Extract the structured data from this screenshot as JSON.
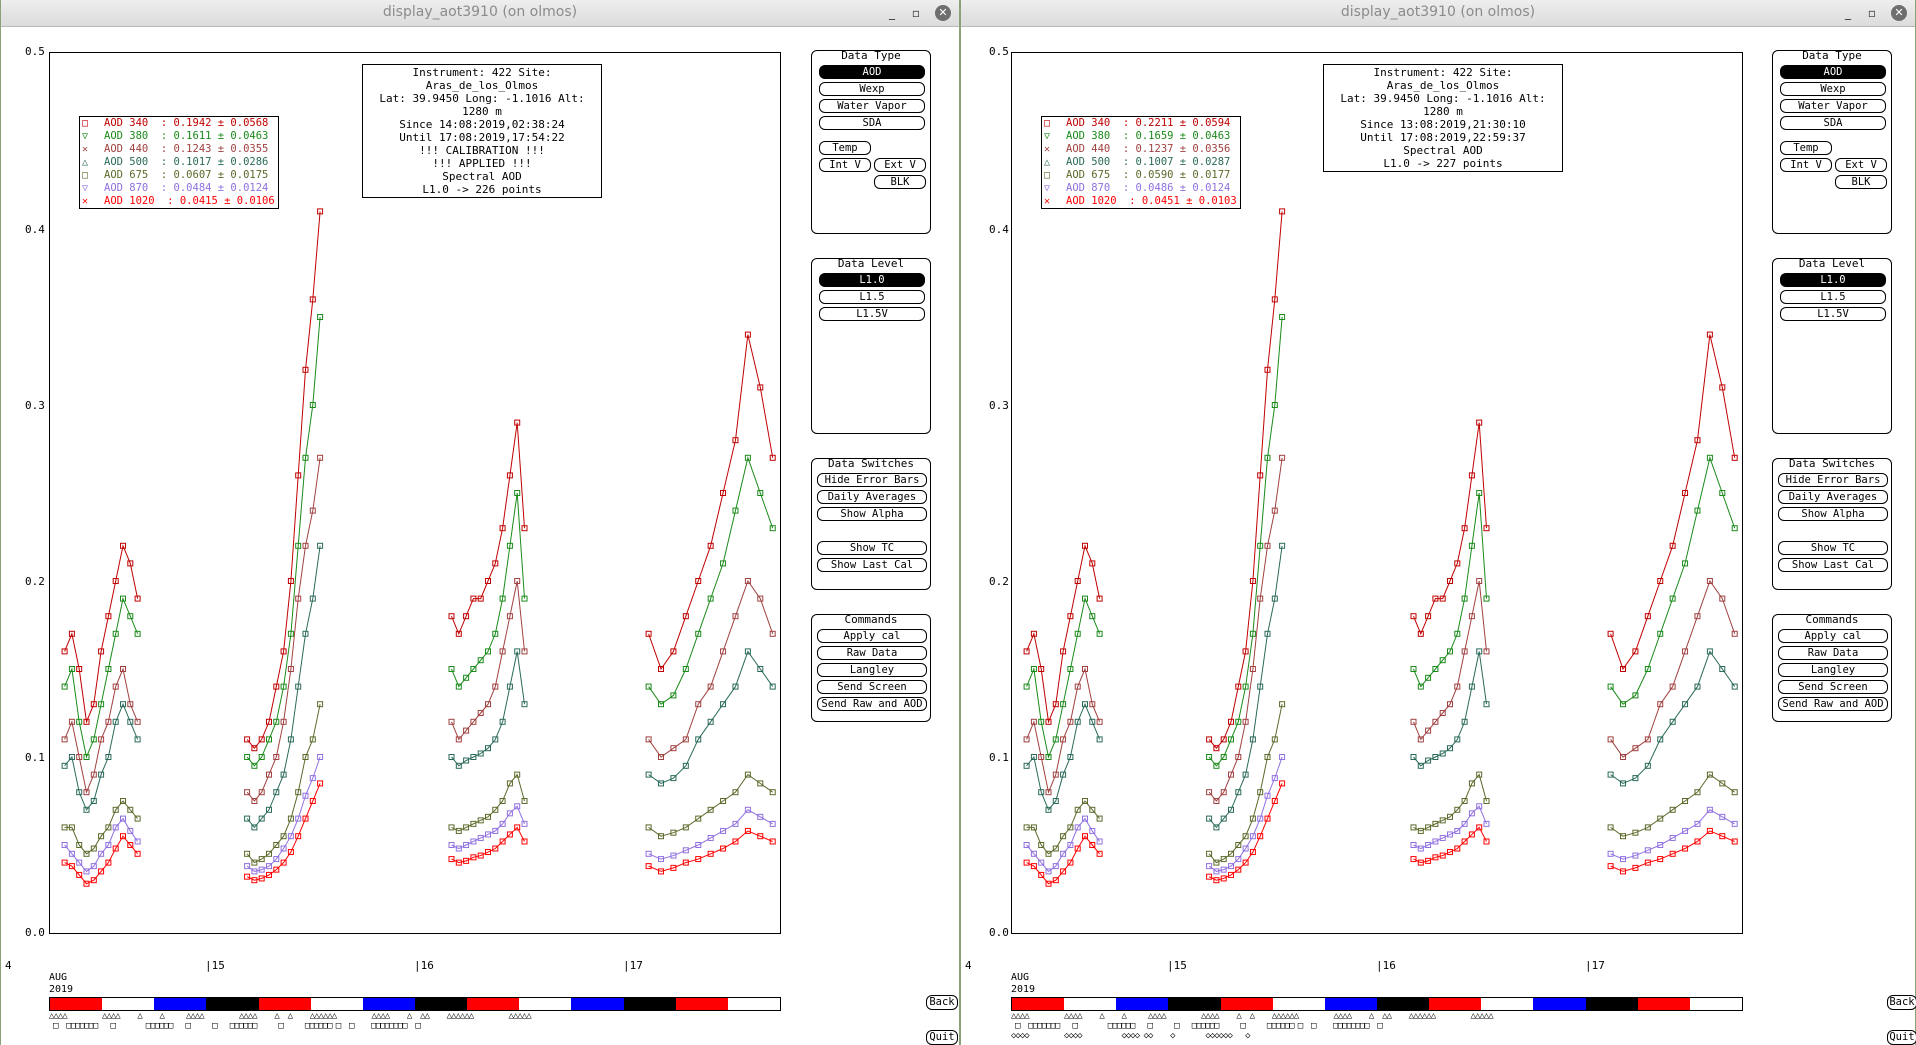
{
  "colors": {
    "aod340": "#c00000",
    "aod380": "#1a8a1a",
    "aod440": "#a04040",
    "aod500": "#2a6a5a",
    "aod675": "#5a6a2a",
    "aod870": "#9070e0",
    "aod1020": "#ff0000"
  },
  "windows": [
    {
      "title": "display_aot3910 (on olmos)",
      "min_label": "_",
      "max_label": "▫",
      "close_label": "✕",
      "info": [
        "Instrument: 422 Site: Aras_de_los_Olmos",
        "Lat: 39.9450 Long: -1.1016 Alt: 1280 m",
        "Since 14:08:2019,02:38:24",
        "Until 17:08:2019,17:54:22",
        "!!! CALIBRATION !!!",
        "!!!   APPLIED   !!!",
        "Spectral AOD",
        "L1.0 -> 226 points"
      ],
      "legend": [
        {
          "marker": "□",
          "label": "AOD 340  : 0.1942 ± 0.0568",
          "color": "#c00000"
        },
        {
          "marker": "▽",
          "label": "AOD 380  : 0.1611 ± 0.0463",
          "color": "#1a8a1a"
        },
        {
          "marker": "✕",
          "label": "AOD 440  : 0.1243 ± 0.0355",
          "color": "#a04040"
        },
        {
          "marker": "△",
          "label": "AOD 500  : 0.1017 ± 0.0286",
          "color": "#2a6a5a"
        },
        {
          "marker": "□",
          "label": "AOD 675  : 0.0607 ± 0.0175",
          "color": "#5a6a2a"
        },
        {
          "marker": "▽",
          "label": "AOD 870  : 0.0484 ± 0.0124",
          "color": "#9070e0"
        },
        {
          "marker": "✕",
          "label": "AOD 1020  : 0.0415 ± 0.0106",
          "color": "#ff0000"
        }
      ],
      "marks_row1": "△△△△        △△△△    △    △     △△△△        △△△△    △  △    △△△△△△        △△△△    △  △△    △△△△△△        △△△△△",
      "marks_row2": "□  □□□□□□□   □       □□□□□□   □     □   □□□□□□     □     □□□□□□ □  □    □□□□□□□□  □"
    },
    {
      "title": "display_aot3910 (on olmos)",
      "min_label": "_",
      "max_label": "▫",
      "close_label": "✕",
      "info": [
        "Instrument: 422 Site: Aras_de_los_Olmos",
        "Lat: 39.9450 Long: -1.1016 Alt: 1280 m",
        "Since 13:08:2019,21:30:10",
        "Until 17:08:2019,22:59:37",
        "Spectral AOD",
        "L1.0 -> 227 points"
      ],
      "legend": [
        {
          "marker": "□",
          "label": "AOD 340  : 0.2211 ± 0.0594",
          "color": "#c00000"
        },
        {
          "marker": "▽",
          "label": "AOD 380  : 0.1659 ± 0.0463",
          "color": "#1a8a1a"
        },
        {
          "marker": "✕",
          "label": "AOD 440  : 0.1237 ± 0.0356",
          "color": "#a04040"
        },
        {
          "marker": "△",
          "label": "AOD 500  : 0.1007 ± 0.0287",
          "color": "#2a6a5a"
        },
        {
          "marker": "□",
          "label": "AOD 675  : 0.0590 ± 0.0177",
          "color": "#5a6a2a"
        },
        {
          "marker": "▽",
          "label": "AOD 870  : 0.0486 ± 0.0124",
          "color": "#9070e0"
        },
        {
          "marker": "✕",
          "label": "AOD 1020  : 0.0451 ± 0.0103",
          "color": "#ff0000"
        }
      ],
      "marks_row1": "△△△△        △△△△    △    △     △△△△        △△△△    △  △    △△△△△△        △△△△    △  △△    △△△△△△        △△△△△",
      "marks_row2": "□  □□□□□□□   □       □□□□□□   □     □   □□□□□□     □     □□□□□□ □  □    □□□□□□□□  □",
      "marks_row3": "◇◇◇◇        ◇◇◇◇         ◇◇◇◇ ◇◇    ◇       ◇◇◇◇◇◇   ◇"
    }
  ],
  "panels": {
    "data_type": {
      "title": "Data Type",
      "buttons": [
        "AOD",
        "Wexp",
        "Water Vapor",
        "SDA",
        "Temp",
        "Int V",
        "Ext V",
        "BLK"
      ]
    },
    "data_level": {
      "title": "Data Level",
      "buttons": [
        "L1.0",
        "L1.5",
        "L1.5V"
      ]
    },
    "data_switches": {
      "title": "Data Switches",
      "buttons": [
        "Hide Error Bars",
        "Daily Averages",
        "Show Alpha",
        "Show TC",
        "Show Last Cal"
      ]
    },
    "commands": {
      "title": "Commands",
      "buttons": [
        "Apply cal",
        "Raw Data",
        "Langley",
        "Send Screen",
        "Send Raw and AOD"
      ]
    }
  },
  "nav": {
    "back": "Back",
    "quit": "Quit"
  },
  "axis": {
    "y_ticks": [
      "0.5",
      "0.4",
      "0.3",
      "0.2",
      "0.1",
      "0.0"
    ],
    "x_start": "4",
    "x_days": [
      "|15",
      "|16",
      "|17"
    ],
    "month": "AUG",
    "year": "2019"
  },
  "timeline_colors": [
    "#ff0000",
    "#ffffff",
    "#0000ff",
    "#000000",
    "#ff0000",
    "#ffffff",
    "#0000ff",
    "#000000",
    "#ff0000",
    "#ffffff",
    "#0000ff",
    "#000000",
    "#ff0000",
    "#ffffff"
  ],
  "chart_data": {
    "type": "scatter",
    "ylim": [
      0,
      0.5
    ],
    "x_label_ticks": [
      "15",
      "16",
      "17"
    ],
    "series_names": [
      "AOD 340",
      "AOD 380",
      "AOD 440",
      "AOD 500",
      "AOD 675",
      "AOD 870",
      "AOD 1020"
    ],
    "days": [
      {
        "day": 14,
        "x": [
          0.0,
          0.1,
          0.2,
          0.3,
          0.4,
          0.5,
          0.6,
          0.7,
          0.8,
          0.9,
          1.0
        ],
        "series": [
          [
            0.16,
            0.17,
            0.15,
            0.12,
            0.13,
            0.16,
            0.18,
            0.2,
            0.22,
            0.21,
            0.19
          ],
          [
            0.14,
            0.15,
            0.12,
            0.1,
            0.11,
            0.13,
            0.15,
            0.17,
            0.19,
            0.18,
            0.17
          ],
          [
            0.11,
            0.12,
            0.1,
            0.08,
            0.09,
            0.11,
            0.12,
            0.14,
            0.15,
            0.13,
            0.12
          ],
          [
            0.095,
            0.1,
            0.08,
            0.07,
            0.075,
            0.09,
            0.1,
            0.12,
            0.13,
            0.12,
            0.11
          ],
          [
            0.06,
            0.06,
            0.05,
            0.045,
            0.048,
            0.055,
            0.06,
            0.07,
            0.075,
            0.07,
            0.065
          ],
          [
            0.05,
            0.045,
            0.04,
            0.035,
            0.038,
            0.045,
            0.05,
            0.06,
            0.065,
            0.058,
            0.052
          ],
          [
            0.04,
            0.038,
            0.033,
            0.028,
            0.03,
            0.035,
            0.04,
            0.048,
            0.055,
            0.05,
            0.045
          ]
        ]
      },
      {
        "day": 15,
        "x": [
          0.0,
          0.1,
          0.2,
          0.3,
          0.4,
          0.5,
          0.6,
          0.7,
          0.8,
          0.9,
          1.0
        ],
        "series": [
          [
            0.11,
            0.105,
            0.11,
            0.12,
            0.14,
            0.16,
            0.2,
            0.26,
            0.32,
            0.36,
            0.41
          ],
          [
            0.1,
            0.095,
            0.1,
            0.11,
            0.12,
            0.14,
            0.17,
            0.22,
            0.27,
            0.3,
            0.35
          ],
          [
            0.08,
            0.075,
            0.08,
            0.09,
            0.1,
            0.12,
            0.15,
            0.19,
            0.22,
            0.24,
            0.27
          ],
          [
            0.065,
            0.06,
            0.065,
            0.07,
            0.08,
            0.09,
            0.11,
            0.14,
            0.17,
            0.19,
            0.22
          ],
          [
            0.045,
            0.04,
            0.042,
            0.045,
            0.05,
            0.055,
            0.065,
            0.08,
            0.1,
            0.11,
            0.13
          ],
          [
            0.038,
            0.035,
            0.036,
            0.038,
            0.042,
            0.048,
            0.055,
            0.065,
            0.078,
            0.088,
            0.1
          ],
          [
            0.032,
            0.03,
            0.031,
            0.033,
            0.036,
            0.04,
            0.046,
            0.055,
            0.065,
            0.075,
            0.085
          ]
        ]
      },
      {
        "day": 16,
        "x": [
          0.0,
          0.1,
          0.2,
          0.3,
          0.4,
          0.5,
          0.6,
          0.7,
          0.8,
          0.9,
          1.0
        ],
        "series": [
          [
            0.18,
            0.17,
            0.18,
            0.19,
            0.19,
            0.2,
            0.21,
            0.23,
            0.26,
            0.29,
            0.23
          ],
          [
            0.15,
            0.14,
            0.145,
            0.15,
            0.155,
            0.16,
            0.17,
            0.19,
            0.22,
            0.25,
            0.19
          ],
          [
            0.12,
            0.11,
            0.115,
            0.12,
            0.125,
            0.13,
            0.14,
            0.16,
            0.18,
            0.2,
            0.16
          ],
          [
            0.1,
            0.095,
            0.098,
            0.1,
            0.102,
            0.105,
            0.11,
            0.12,
            0.14,
            0.16,
            0.13
          ],
          [
            0.06,
            0.058,
            0.06,
            0.062,
            0.064,
            0.066,
            0.07,
            0.075,
            0.085,
            0.09,
            0.075
          ],
          [
            0.05,
            0.048,
            0.05,
            0.052,
            0.054,
            0.056,
            0.058,
            0.062,
            0.068,
            0.072,
            0.062
          ],
          [
            0.042,
            0.04,
            0.041,
            0.043,
            0.044,
            0.046,
            0.048,
            0.052,
            0.056,
            0.06,
            0.052
          ]
        ]
      },
      {
        "day": 17,
        "x": [
          0.0,
          0.1,
          0.2,
          0.3,
          0.4,
          0.5,
          0.6,
          0.7,
          0.8,
          0.9,
          1.0
        ],
        "series": [
          [
            0.17,
            0.15,
            0.16,
            0.18,
            0.2,
            0.22,
            0.25,
            0.28,
            0.34,
            0.31,
            0.27
          ],
          [
            0.14,
            0.13,
            0.135,
            0.15,
            0.17,
            0.19,
            0.21,
            0.24,
            0.27,
            0.25,
            0.23
          ],
          [
            0.11,
            0.1,
            0.105,
            0.11,
            0.13,
            0.14,
            0.16,
            0.18,
            0.2,
            0.19,
            0.17
          ],
          [
            0.09,
            0.085,
            0.088,
            0.095,
            0.11,
            0.12,
            0.13,
            0.14,
            0.16,
            0.15,
            0.14
          ],
          [
            0.06,
            0.055,
            0.057,
            0.06,
            0.065,
            0.07,
            0.075,
            0.08,
            0.09,
            0.085,
            0.08
          ],
          [
            0.045,
            0.042,
            0.044,
            0.047,
            0.05,
            0.054,
            0.058,
            0.062,
            0.07,
            0.066,
            0.062
          ],
          [
            0.038,
            0.035,
            0.037,
            0.04,
            0.042,
            0.045,
            0.048,
            0.052,
            0.058,
            0.055,
            0.052
          ]
        ]
      }
    ]
  }
}
